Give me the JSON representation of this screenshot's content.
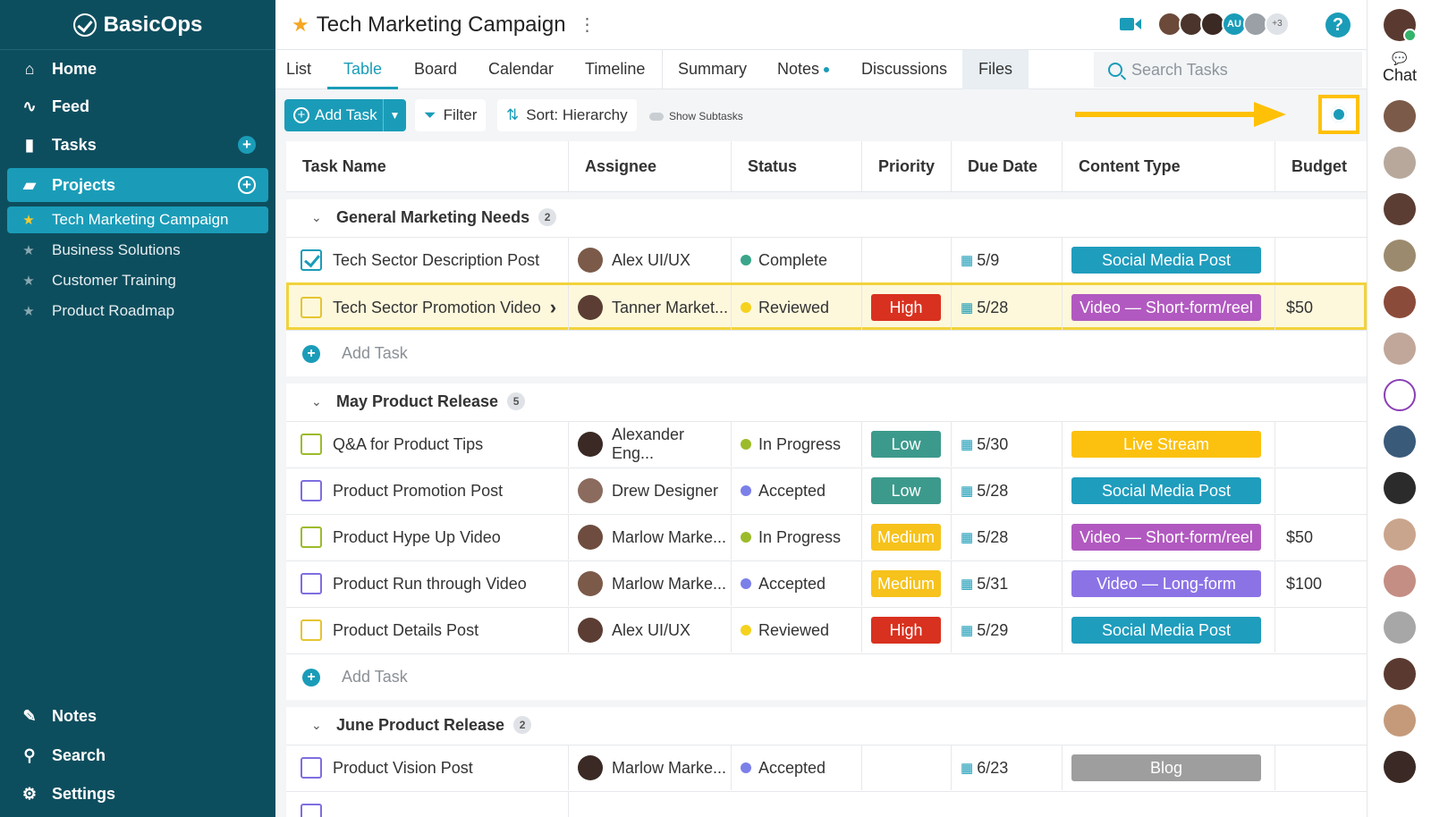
{
  "sidebar": {
    "logo": "BasicOps",
    "nav": [
      {
        "label": "Home",
        "icon": "home-icon"
      },
      {
        "label": "Feed",
        "icon": "pulse-icon"
      },
      {
        "label": "Tasks",
        "icon": "clipboard-icon"
      },
      {
        "label": "Projects",
        "icon": "folder-icon"
      }
    ],
    "projects": [
      "Tech Marketing Campaign",
      "Business Solutions",
      "Customer Training",
      "Product Roadmap"
    ],
    "bottom": [
      {
        "label": "Notes",
        "icon": "pencil-icon"
      },
      {
        "label": "Search",
        "icon": "search-icon"
      },
      {
        "label": "Settings",
        "icon": "gear-icon"
      }
    ]
  },
  "header": {
    "title": "Tech Marketing Campaign",
    "avatar_tag": "AU",
    "more_count": "+3",
    "help": "?"
  },
  "tabs": [
    "List",
    "Table",
    "Board",
    "Calendar",
    "Timeline",
    "Summary",
    "Notes",
    "Discussions",
    "Files"
  ],
  "active_tab": "Table",
  "search": {
    "placeholder": "Search Tasks"
  },
  "toolbar": {
    "add_task": "Add Task",
    "filter": "Filter",
    "sort": "Sort: Hierarchy",
    "show_subtasks": "Show Subtasks"
  },
  "columns": [
    "Task Name",
    "Assignee",
    "Status",
    "Priority",
    "Due Date",
    "Content Type",
    "Budget"
  ],
  "add_task_label": "Add Task",
  "groups": [
    {
      "name": "General Marketing Needs",
      "count": "2",
      "tasks": [
        {
          "name": "Tech Sector Description Post",
          "assignee": "Alex UI/UX",
          "status": "Complete",
          "priority": "",
          "due": "5/9",
          "content": "Social Media Post",
          "budget": "",
          "checked": true
        },
        {
          "name": "Tech Sector Promotion Video",
          "assignee": "Tanner Market...",
          "status": "Reviewed",
          "priority": "High",
          "due": "5/28",
          "content": "Video — Short-form/reel",
          "budget": "$50"
        }
      ]
    },
    {
      "name": "May Product Release",
      "count": "5",
      "tasks": [
        {
          "name": "Q&A for Product Tips",
          "assignee": "Alexander Eng...",
          "status": "In Progress",
          "priority": "Low",
          "due": "5/30",
          "content": "Live Stream",
          "budget": ""
        },
        {
          "name": "Product Promotion Post",
          "assignee": "Drew Designer",
          "status": "Accepted",
          "priority": "Low",
          "due": "5/28",
          "content": "Social Media Post",
          "budget": ""
        },
        {
          "name": "Product Hype Up Video",
          "assignee": "Marlow Marke...",
          "status": "In Progress",
          "priority": "Medium",
          "due": "5/28",
          "content": "Video — Short-form/reel",
          "budget": "$50"
        },
        {
          "name": "Product Run through Video",
          "assignee": "Marlow Marke...",
          "status": "Accepted",
          "priority": "Medium",
          "due": "5/31",
          "content": "Video — Long-form",
          "budget": "$100"
        },
        {
          "name": "Product Details Post",
          "assignee": "Alex UI/UX",
          "status": "Reviewed",
          "priority": "High",
          "due": "5/29",
          "content": "Social Media Post",
          "budget": ""
        }
      ]
    },
    {
      "name": "June Product Release",
      "count": "2",
      "tasks": [
        {
          "name": "Product Vision Post",
          "assignee": "Marlow Marke...",
          "status": "Accepted",
          "priority": "",
          "due": "6/23",
          "content": "Blog",
          "budget": ""
        }
      ]
    }
  ],
  "rail": {
    "chat_label": "Chat"
  },
  "colors": {
    "accent": "#1a9cb8",
    "sidebar": "#0d4e5e",
    "highlight": "#ffc107",
    "status": {
      "Complete": "#3aa58a",
      "Reviewed": "#f5d21e",
      "In Progress": "#9cbb2a",
      "Accepted": "#7b7fe8"
    },
    "priority": {
      "High": "#d9311f",
      "Low": "#3c9a8c",
      "Medium": "#f6c21b"
    },
    "content": {
      "Social Media Post": "#1f9dbd",
      "Video — Short-form/reel": "#b159c0",
      "Live Stream": "#fcc10e",
      "Video — Long-form": "#8b73e6",
      "Blog": "#9e9e9e"
    }
  }
}
